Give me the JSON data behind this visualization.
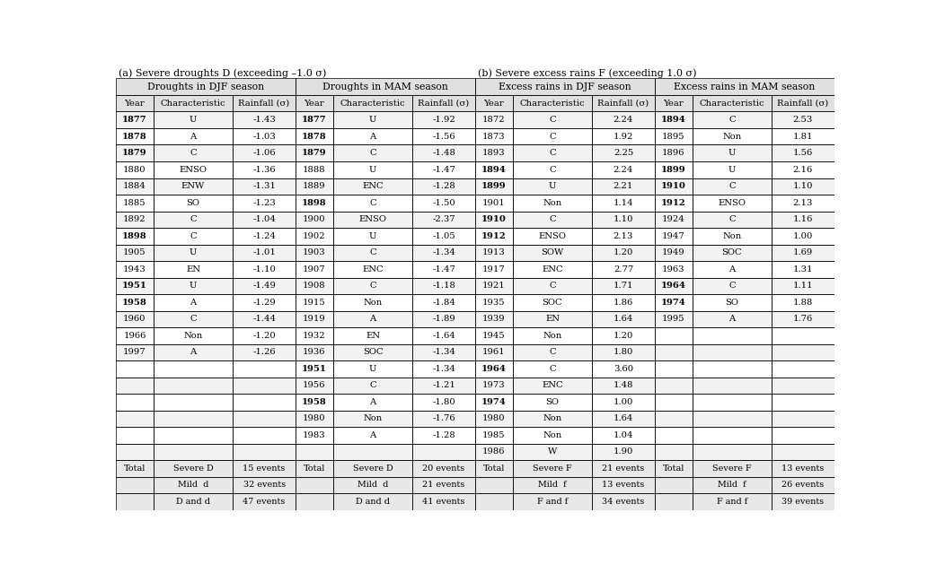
{
  "title_a": "(a) Severe droughts D (exceeding –1.0 σ)",
  "title_b": "(b) Severe excess rains F (exceeding 1.0 σ)",
  "section_a_header1": "Droughts in DJF season",
  "section_a_header2": "Droughts in MAM season",
  "section_b_header1": "Excess rains in DJF season",
  "section_b_header2": "Excess rains in MAM season",
  "col_headers": [
    "Year",
    "Characteristic",
    "Rainfall (σ)"
  ],
  "drought_djf": [
    [
      "1877",
      "U",
      "-1.43",
      true
    ],
    [
      "1878",
      "A",
      "-1.03",
      true
    ],
    [
      "1879",
      "C",
      "-1.06",
      true
    ],
    [
      "1880",
      "ENSO",
      "-1.36",
      false
    ],
    [
      "1884",
      "ENW",
      "-1.31",
      false
    ],
    [
      "1885",
      "SO",
      "-1.23",
      false
    ],
    [
      "1892",
      "C",
      "-1.04",
      false
    ],
    [
      "1898",
      "C",
      "-1.24",
      true
    ],
    [
      "1905",
      "U",
      "-1.01",
      false
    ],
    [
      "1943",
      "EN",
      "-1.10",
      false
    ],
    [
      "1951",
      "U",
      "-1.49",
      true
    ],
    [
      "1958",
      "A",
      "-1.29",
      true
    ],
    [
      "1960",
      "C",
      "-1.44",
      false
    ],
    [
      "1966",
      "Non",
      "-1.20",
      false
    ],
    [
      "1997",
      "A",
      "-1.26",
      false
    ]
  ],
  "drought_mam": [
    [
      "1877",
      "U",
      "-1.92",
      true
    ],
    [
      "1878",
      "A",
      "-1.56",
      true
    ],
    [
      "1879",
      "C",
      "-1.48",
      true
    ],
    [
      "1888",
      "U",
      "-1.47",
      false
    ],
    [
      "1889",
      "ENC",
      "-1.28",
      false
    ],
    [
      "1898",
      "C",
      "-1.50",
      true
    ],
    [
      "1900",
      "ENSO",
      "-2.37",
      false
    ],
    [
      "1902",
      "U",
      "-1.05",
      false
    ],
    [
      "1903",
      "C",
      "-1.34",
      false
    ],
    [
      "1907",
      "ENC",
      "-1.47",
      false
    ],
    [
      "1908",
      "C",
      "-1.18",
      false
    ],
    [
      "1915",
      "Non",
      "-1.84",
      false
    ],
    [
      "1919",
      "A",
      "-1.89",
      false
    ],
    [
      "1932",
      "EN",
      "-1.64",
      false
    ],
    [
      "1936",
      "SOC",
      "-1.34",
      false
    ],
    [
      "1951",
      "U",
      "-1.34",
      true
    ],
    [
      "1956",
      "C",
      "-1.21",
      false
    ],
    [
      "1958",
      "A",
      "-1.80",
      true
    ],
    [
      "1980",
      "Non",
      "-1.76",
      false
    ],
    [
      "1983",
      "A",
      "-1.28",
      false
    ]
  ],
  "drought_djf_totals": [
    [
      "Total",
      "Severe D",
      "15 events"
    ],
    [
      "",
      "Mild  d",
      "32 events"
    ],
    [
      "",
      "D and d",
      "47 events"
    ]
  ],
  "drought_mam_totals": [
    [
      "Total",
      "Severe D",
      "20 events"
    ],
    [
      "",
      "Mild  d",
      "21 events"
    ],
    [
      "",
      "D and d",
      "41 events"
    ]
  ],
  "excess_djf": [
    [
      "1872",
      "C",
      "2.24",
      false
    ],
    [
      "1873",
      "C",
      "1.92",
      false
    ],
    [
      "1893",
      "C",
      "2.25",
      false
    ],
    [
      "1894",
      "C",
      "2.24",
      true
    ],
    [
      "1899",
      "U",
      "2.21",
      true
    ],
    [
      "1901",
      "Non",
      "1.14",
      false
    ],
    [
      "1910",
      "C",
      "1.10",
      true
    ],
    [
      "1912",
      "ENSO",
      "2.13",
      true
    ],
    [
      "1913",
      "SOW",
      "1.20",
      false
    ],
    [
      "1917",
      "ENC",
      "2.77",
      false
    ],
    [
      "1921",
      "C",
      "1.71",
      false
    ],
    [
      "1935",
      "SOC",
      "1.86",
      false
    ],
    [
      "1939",
      "EN",
      "1.64",
      false
    ],
    [
      "1945",
      "Non",
      "1.20",
      false
    ],
    [
      "1961",
      "C",
      "1.80",
      false
    ],
    [
      "1964",
      "C",
      "3.60",
      true
    ],
    [
      "1973",
      "ENC",
      "1.48",
      false
    ],
    [
      "1974",
      "SO",
      "1.00",
      true
    ],
    [
      "1980",
      "Non",
      "1.64",
      false
    ],
    [
      "1985",
      "Non",
      "1.04",
      false
    ],
    [
      "1986",
      "W",
      "1.90",
      false
    ]
  ],
  "excess_mam": [
    [
      "1894",
      "C",
      "2.53",
      true
    ],
    [
      "1895",
      "Non",
      "1.81",
      false
    ],
    [
      "1896",
      "U",
      "1.56",
      false
    ],
    [
      "1899",
      "U",
      "2.16",
      true
    ],
    [
      "1910",
      "C",
      "1.10",
      true
    ],
    [
      "1912",
      "ENSO",
      "2.13",
      true
    ],
    [
      "1924",
      "C",
      "1.16",
      false
    ],
    [
      "1947",
      "Non",
      "1.00",
      false
    ],
    [
      "1949",
      "SOC",
      "1.69",
      false
    ],
    [
      "1963",
      "A",
      "1.31",
      false
    ],
    [
      "1964",
      "C",
      "1.11",
      true
    ],
    [
      "1974",
      "SO",
      "1.88",
      true
    ],
    [
      "1995",
      "A",
      "1.76",
      false
    ]
  ],
  "excess_djf_totals": [
    [
      "Total",
      "Severe F",
      "21 events"
    ],
    [
      "",
      "Mild  f",
      "13 events"
    ],
    [
      "",
      "F and f",
      "34 events"
    ]
  ],
  "excess_mam_totals": [
    [
      "Total",
      "Severe F",
      "13 events"
    ],
    [
      "",
      "Mild  f",
      "26 events"
    ],
    [
      "",
      "F and f",
      "39 events"
    ]
  ],
  "bg_color": "#ffffff",
  "font_size": 7.2,
  "header_font_size": 7.8,
  "title_font_size": 8.0
}
